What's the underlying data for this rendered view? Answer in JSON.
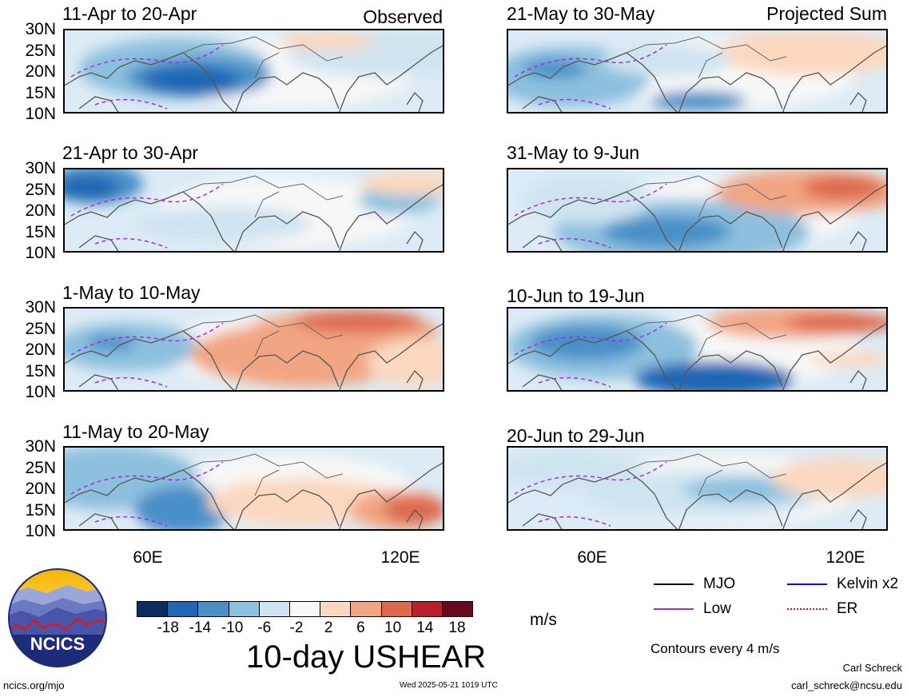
{
  "panels_left": [
    {
      "title": "11-Apr to 20-Apr",
      "note": "Observed"
    },
    {
      "title": "21-Apr to 30-Apr",
      "note": ""
    },
    {
      "title": "1-May to 10-May",
      "note": ""
    },
    {
      "title": "11-May to 20-May",
      "note": ""
    }
  ],
  "panels_right": [
    {
      "title": "21-May to 30-May",
      "note": "Projected Sum"
    },
    {
      "title": "31-May to 9-Jun",
      "note": ""
    },
    {
      "title": "10-Jun to 19-Jun",
      "note": ""
    },
    {
      "title": "20-Jun to 29-Jun",
      "note": ""
    }
  ],
  "lat_labels": [
    "30N",
    "25N",
    "20N",
    "15N",
    "10N"
  ],
  "lon_labels": [
    "60E",
    "120E"
  ],
  "colorbar": {
    "colors": [
      "#0c2e5e",
      "#1f66b4",
      "#4a8fc8",
      "#8cc0de",
      "#cfe4f1",
      "#f7f7f7",
      "#fcd8c0",
      "#f2a582",
      "#dd6a4f",
      "#b8202c",
      "#670a1f"
    ],
    "ticks": [
      "-18",
      "-14",
      "-10",
      "-6",
      "-2",
      "2",
      "6",
      "10",
      "14",
      "18"
    ],
    "unit": "m/s"
  },
  "legend": [
    {
      "label": "MJO",
      "color": "#000000"
    },
    {
      "label": "Kelvin x2",
      "color": "#0000ee"
    },
    {
      "label": "Low",
      "color": "#a02ee0"
    },
    {
      "label": "ER",
      "color": "#e01010"
    }
  ],
  "contour_note": "Contours every 4 m/s",
  "main_title": "10-day USHEAR",
  "logo_text": "NCICS",
  "site": "ncics.org/mjo",
  "timestamp": "Wed 2025-05-21 1019 UTC",
  "author": "Carl Schreck",
  "email": "carl_schreck@ncsu.edu"
}
